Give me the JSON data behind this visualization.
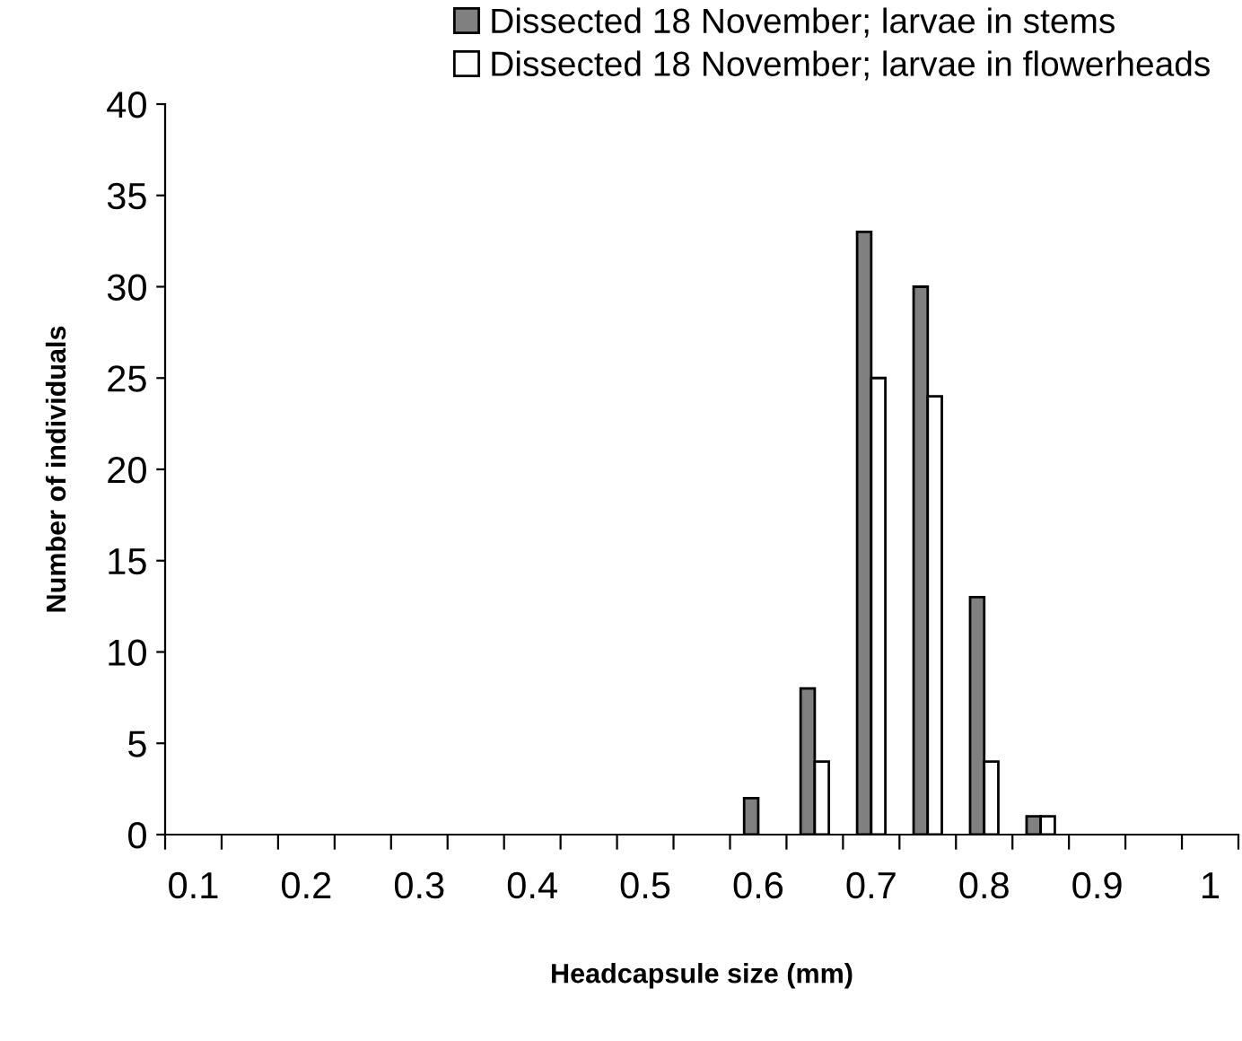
{
  "chart_data": {
    "type": "bar",
    "xlabel": "Headcapsule size (mm)",
    "ylabel": "Number of individuals",
    "categories": [
      "0.1",
      null,
      "0.2",
      null,
      "0.3",
      null,
      "0.4",
      null,
      "0.5",
      null,
      "0.6",
      null,
      "0.7",
      null,
      "0.8",
      null,
      "0.9",
      null,
      "1"
    ],
    "series": [
      {
        "name": "Dissected 18 November; larvae in stems",
        "color": "#808080",
        "values": [
          0,
          0,
          0,
          0,
          0,
          0,
          0,
          0,
          0,
          0,
          2,
          8,
          33,
          30,
          13,
          1,
          0,
          0,
          0
        ]
      },
      {
        "name": "Dissected 18 November; larvae in flowerheads",
        "color": "#ffffff",
        "values": [
          0,
          0,
          0,
          0,
          0,
          0,
          0,
          0,
          0,
          0,
          0,
          4,
          25,
          24,
          4,
          1,
          0,
          0,
          0
        ]
      }
    ],
    "ylim": [
      0,
      40
    ],
    "yticks": [
      0,
      5,
      10,
      15,
      20,
      25,
      30,
      35,
      40
    ],
    "grid": false,
    "legend": "top"
  }
}
